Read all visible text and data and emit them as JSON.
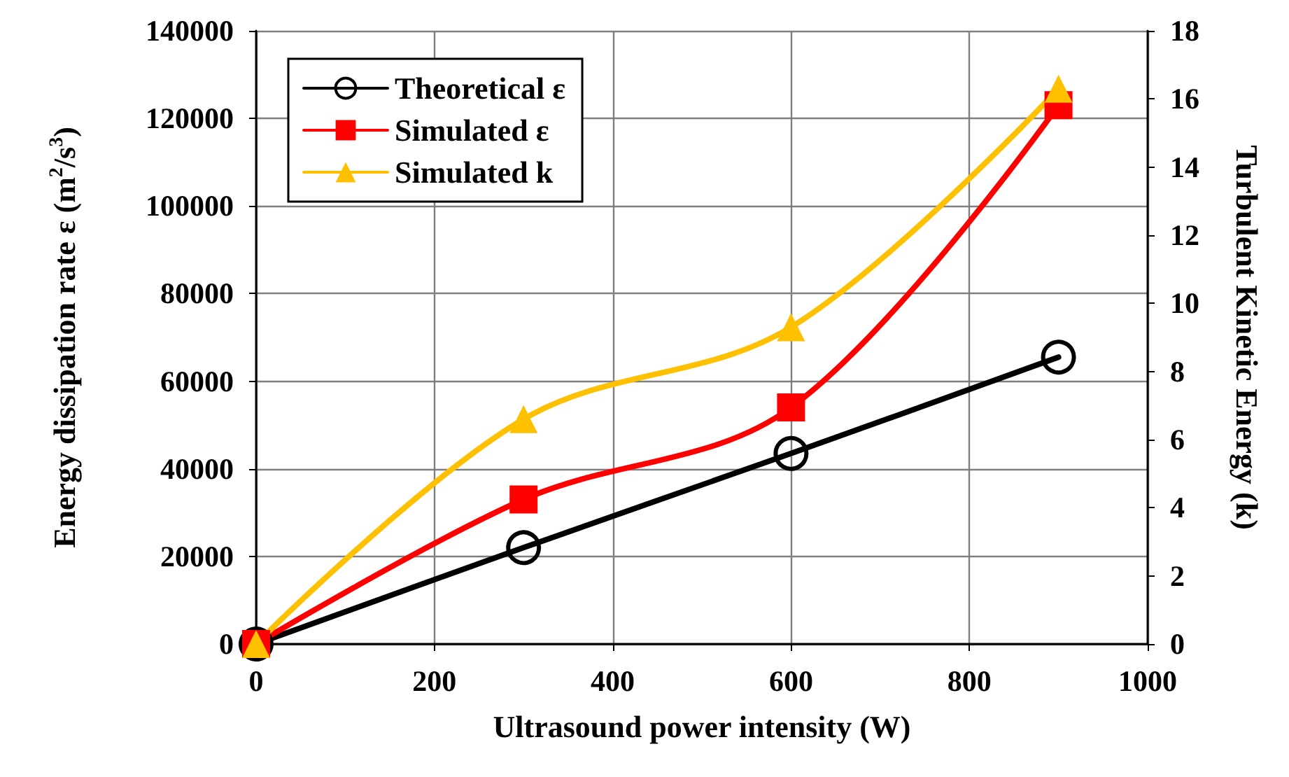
{
  "chart_data": {
    "type": "line",
    "xlabel": "Ultrasound power intensity (W)",
    "ylabel": "Energy dissipation rate ε (m$^{2}$/s$^{3}$)",
    "y2label": "Turbulent Kinetic Energy (k)",
    "x": [
      0,
      300,
      600,
      900
    ],
    "series": [
      {
        "name": "Theoretical ε",
        "color": "#000000",
        "marker": "circle",
        "values": [
          0,
          22000,
          43500,
          65500
        ]
      },
      {
        "name": "Simulated ε",
        "color": "#ff0000",
        "marker": "square",
        "values": [
          0,
          33000,
          54000,
          123000
        ]
      },
      {
        "name": "Simulated k",
        "color": "#ffc000",
        "marker": "triangle",
        "axis": "y2",
        "values": [
          0,
          6.6,
          9.3,
          16.3
        ]
      }
    ],
    "xlim": [
      0,
      1000
    ],
    "xticks": [
      0,
      200,
      400,
      600,
      800,
      1000
    ],
    "ylim": [
      0,
      140000
    ],
    "yticks": [
      0,
      20000,
      40000,
      60000,
      80000,
      100000,
      120000,
      140000
    ],
    "y2lim": [
      0,
      18
    ],
    "y2ticks": [
      0,
      2,
      4,
      6,
      8,
      10,
      12,
      14,
      16,
      18
    ],
    "grid": true,
    "legend": "top left"
  }
}
